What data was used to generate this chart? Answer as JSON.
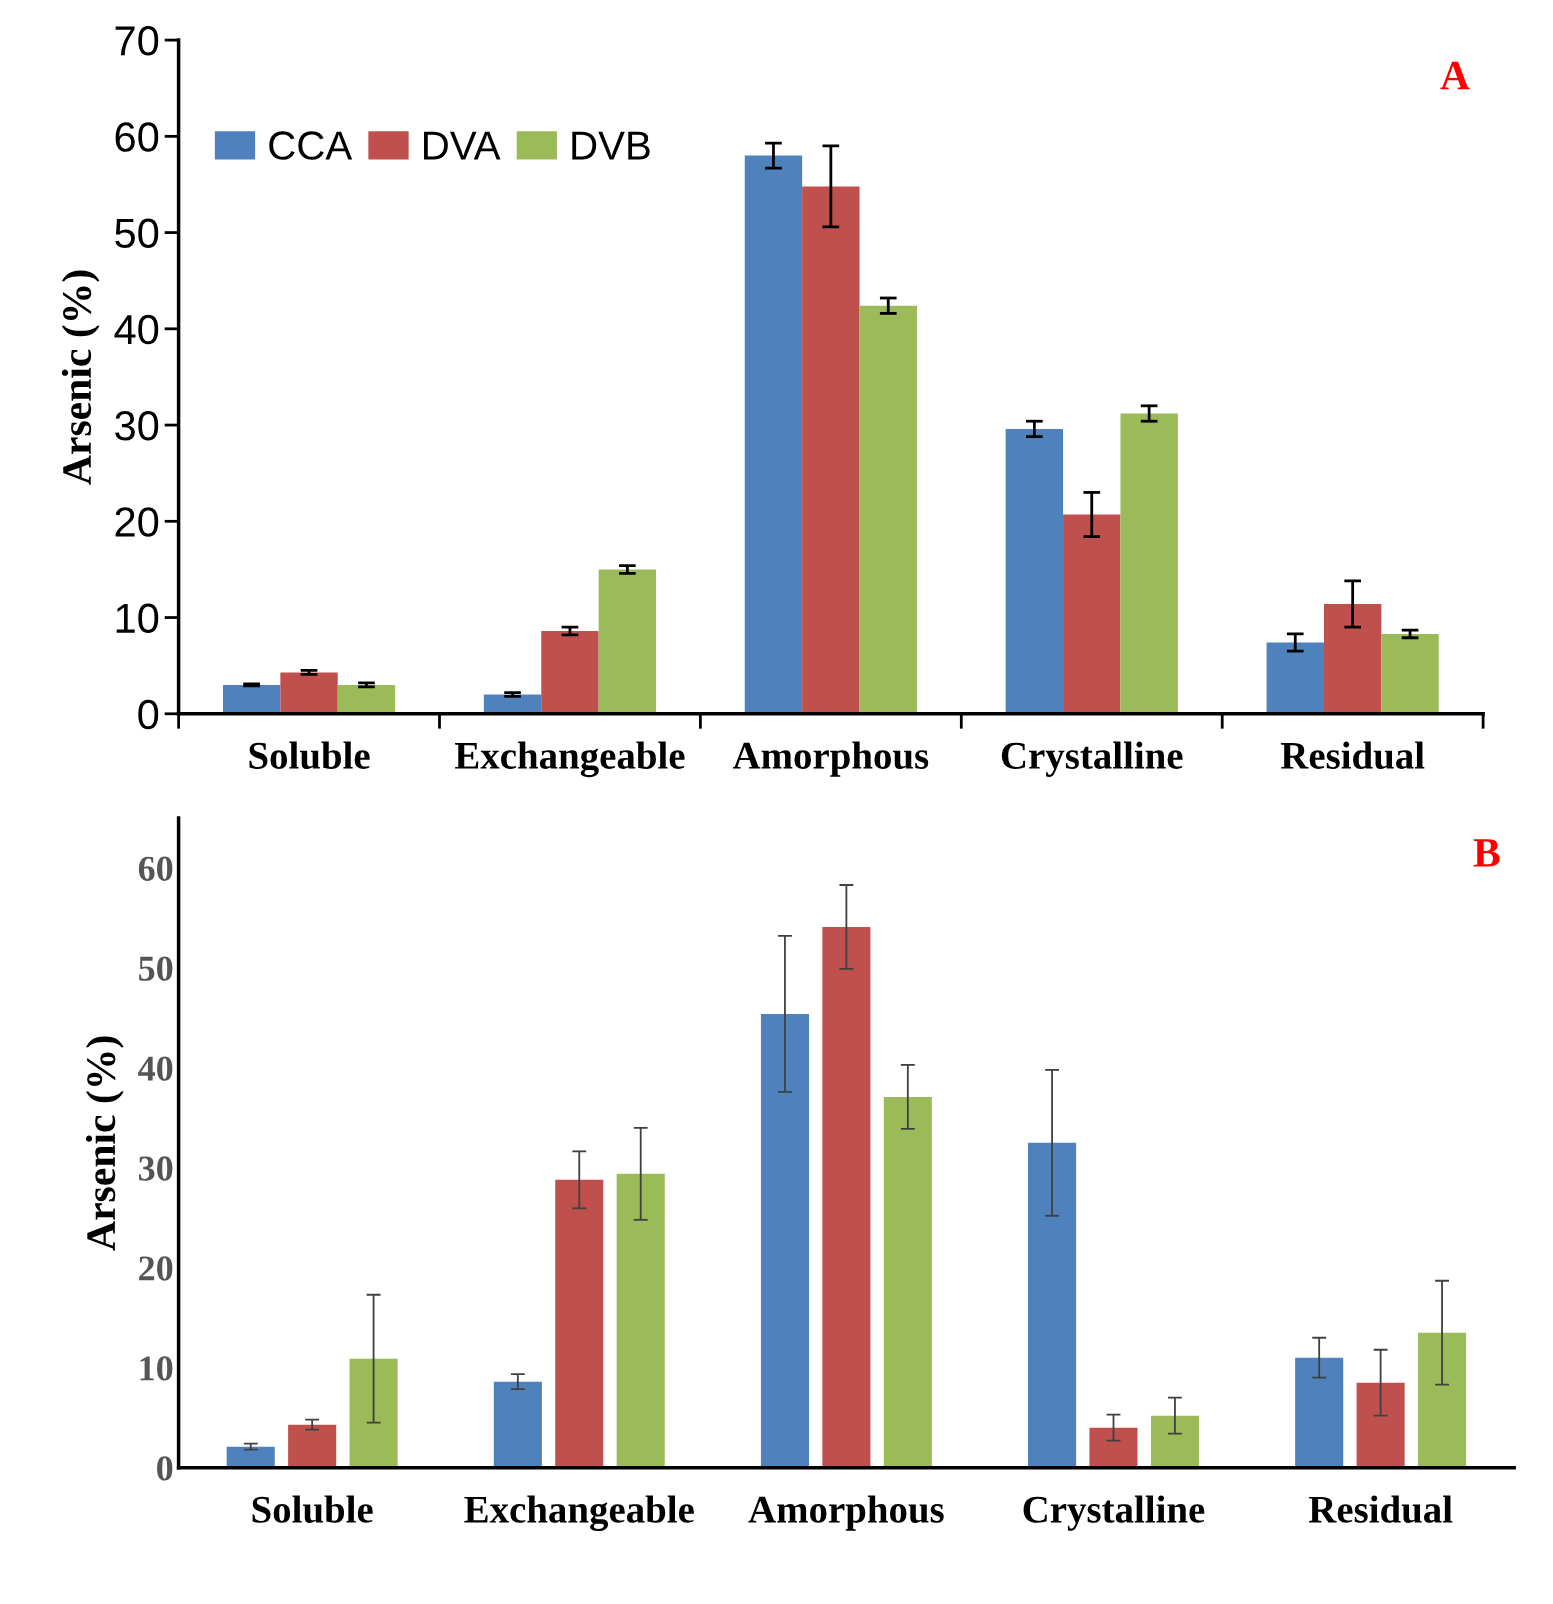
{
  "chart_data": [
    {
      "type": "bar",
      "ylabel": "Arsenic (%)",
      "annotations": [
        "A"
      ],
      "categories": [
        "Soluble",
        "Exchangeable",
        "Amorphous",
        "Crystalline",
        "Residual"
      ],
      "ylim": [
        0,
        70
      ],
      "yticks": [
        0,
        10,
        20,
        30,
        40,
        50,
        60,
        70
      ],
      "grid": false,
      "legend": "top left",
      "series": [
        {
          "name": "CCA",
          "color": "#4f81bd",
          "values": [
            3.0,
            2.0,
            58.0,
            29.6,
            7.4
          ],
          "errors": [
            0.1,
            0.2,
            1.3,
            0.8,
            0.9
          ]
        },
        {
          "name": "DVA",
          "color": "#c0504d",
          "values": [
            4.3,
            8.6,
            54.8,
            20.7,
            11.4
          ],
          "errors": [
            0.2,
            0.4,
            4.2,
            2.3,
            2.4
          ]
        },
        {
          "name": "DVB",
          "color": "#9bbb59",
          "values": [
            3.0,
            15.0,
            42.4,
            31.2,
            8.3
          ],
          "errors": [
            0.2,
            0.4,
            0.8,
            0.8,
            0.4
          ]
        }
      ]
    },
    {
      "type": "bar",
      "ylabel": "Arsenic (%)",
      "annotations": [
        "B"
      ],
      "categories": [
        "Soluble",
        "Exchangeable",
        "Amorphous",
        "Crystalline",
        "Residual"
      ],
      "ylim": [
        0,
        65
      ],
      "yticks": [
        0,
        10,
        20,
        30,
        40,
        50,
        60
      ],
      "grid": false,
      "legend": false,
      "series": [
        {
          "color": "#4f81bd",
          "values": [
            2.1,
            8.6,
            45.4,
            32.5,
            11.0
          ],
          "errors": [
            0.3,
            0.75,
            7.8,
            7.3,
            2.0
          ]
        },
        {
          "color": "#c0504d",
          "values": [
            4.3,
            28.8,
            54.1,
            4.0,
            8.5
          ],
          "errors": [
            0.5,
            2.85,
            4.2,
            1.3,
            3.3
          ]
        },
        {
          "color": "#9bbb59",
          "values": [
            10.9,
            29.4,
            37.1,
            5.2,
            13.5
          ],
          "errors": [
            6.4,
            4.6,
            3.2,
            1.8,
            5.2
          ]
        }
      ]
    }
  ]
}
